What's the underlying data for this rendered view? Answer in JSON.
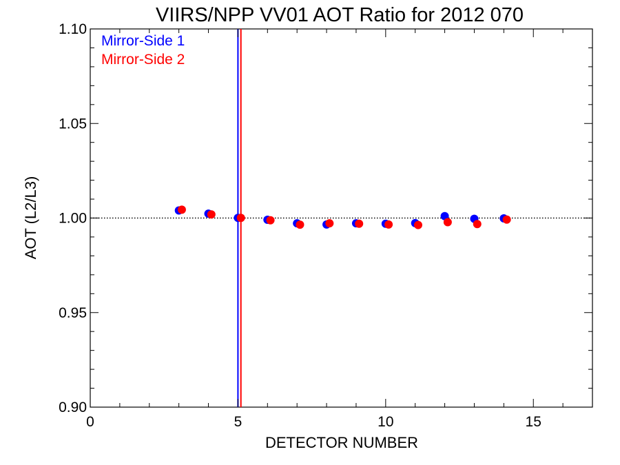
{
  "chart_data": {
    "type": "scatter",
    "title": "VIIRS/NPP VV01 AOT Ratio for 2012 070",
    "xlabel": "DETECTOR NUMBER",
    "ylabel": "AOT (L2/L3)",
    "xlim": [
      0,
      17
    ],
    "ylim": [
      0.9,
      1.1
    ],
    "x_ticks": [
      0,
      5,
      10,
      15
    ],
    "x_tick_labels": [
      "0",
      "5",
      "10",
      "15"
    ],
    "y_ticks": [
      0.9,
      0.95,
      1.0,
      1.05,
      1.1
    ],
    "y_tick_labels": [
      "0.90",
      "0.95",
      "1.00",
      "1.05",
      "1.10"
    ],
    "reference_line": {
      "y": 1.0,
      "style": "dotted"
    },
    "vertical_lines": [
      {
        "x": 5.0,
        "color": "#0000ff"
      },
      {
        "x": 5.1,
        "color": "#ff0000"
      }
    ],
    "legend_position": "top-left",
    "series": [
      {
        "name": "Mirror-Side 1",
        "color": "#0000ff",
        "x": [
          3,
          4,
          5,
          6,
          7,
          8,
          9,
          10,
          11,
          12,
          13,
          14
        ],
        "y": [
          1.004,
          1.0023,
          1.0001,
          0.9991,
          0.9972,
          0.9966,
          0.9972,
          0.997,
          0.9973,
          1.001,
          0.9996,
          0.9998
        ]
      },
      {
        "name": "Mirror-Side 2",
        "color": "#ff0000",
        "x": [
          3.1,
          4.1,
          5.1,
          6.1,
          7.1,
          8.1,
          9.1,
          10.1,
          11.1,
          12.1,
          13.1,
          14.1
        ],
        "y": [
          1.0044,
          1.0019,
          1.0001,
          0.9988,
          0.9965,
          0.9972,
          0.997,
          0.9966,
          0.9963,
          0.9978,
          0.9968,
          0.9992
        ]
      }
    ]
  }
}
